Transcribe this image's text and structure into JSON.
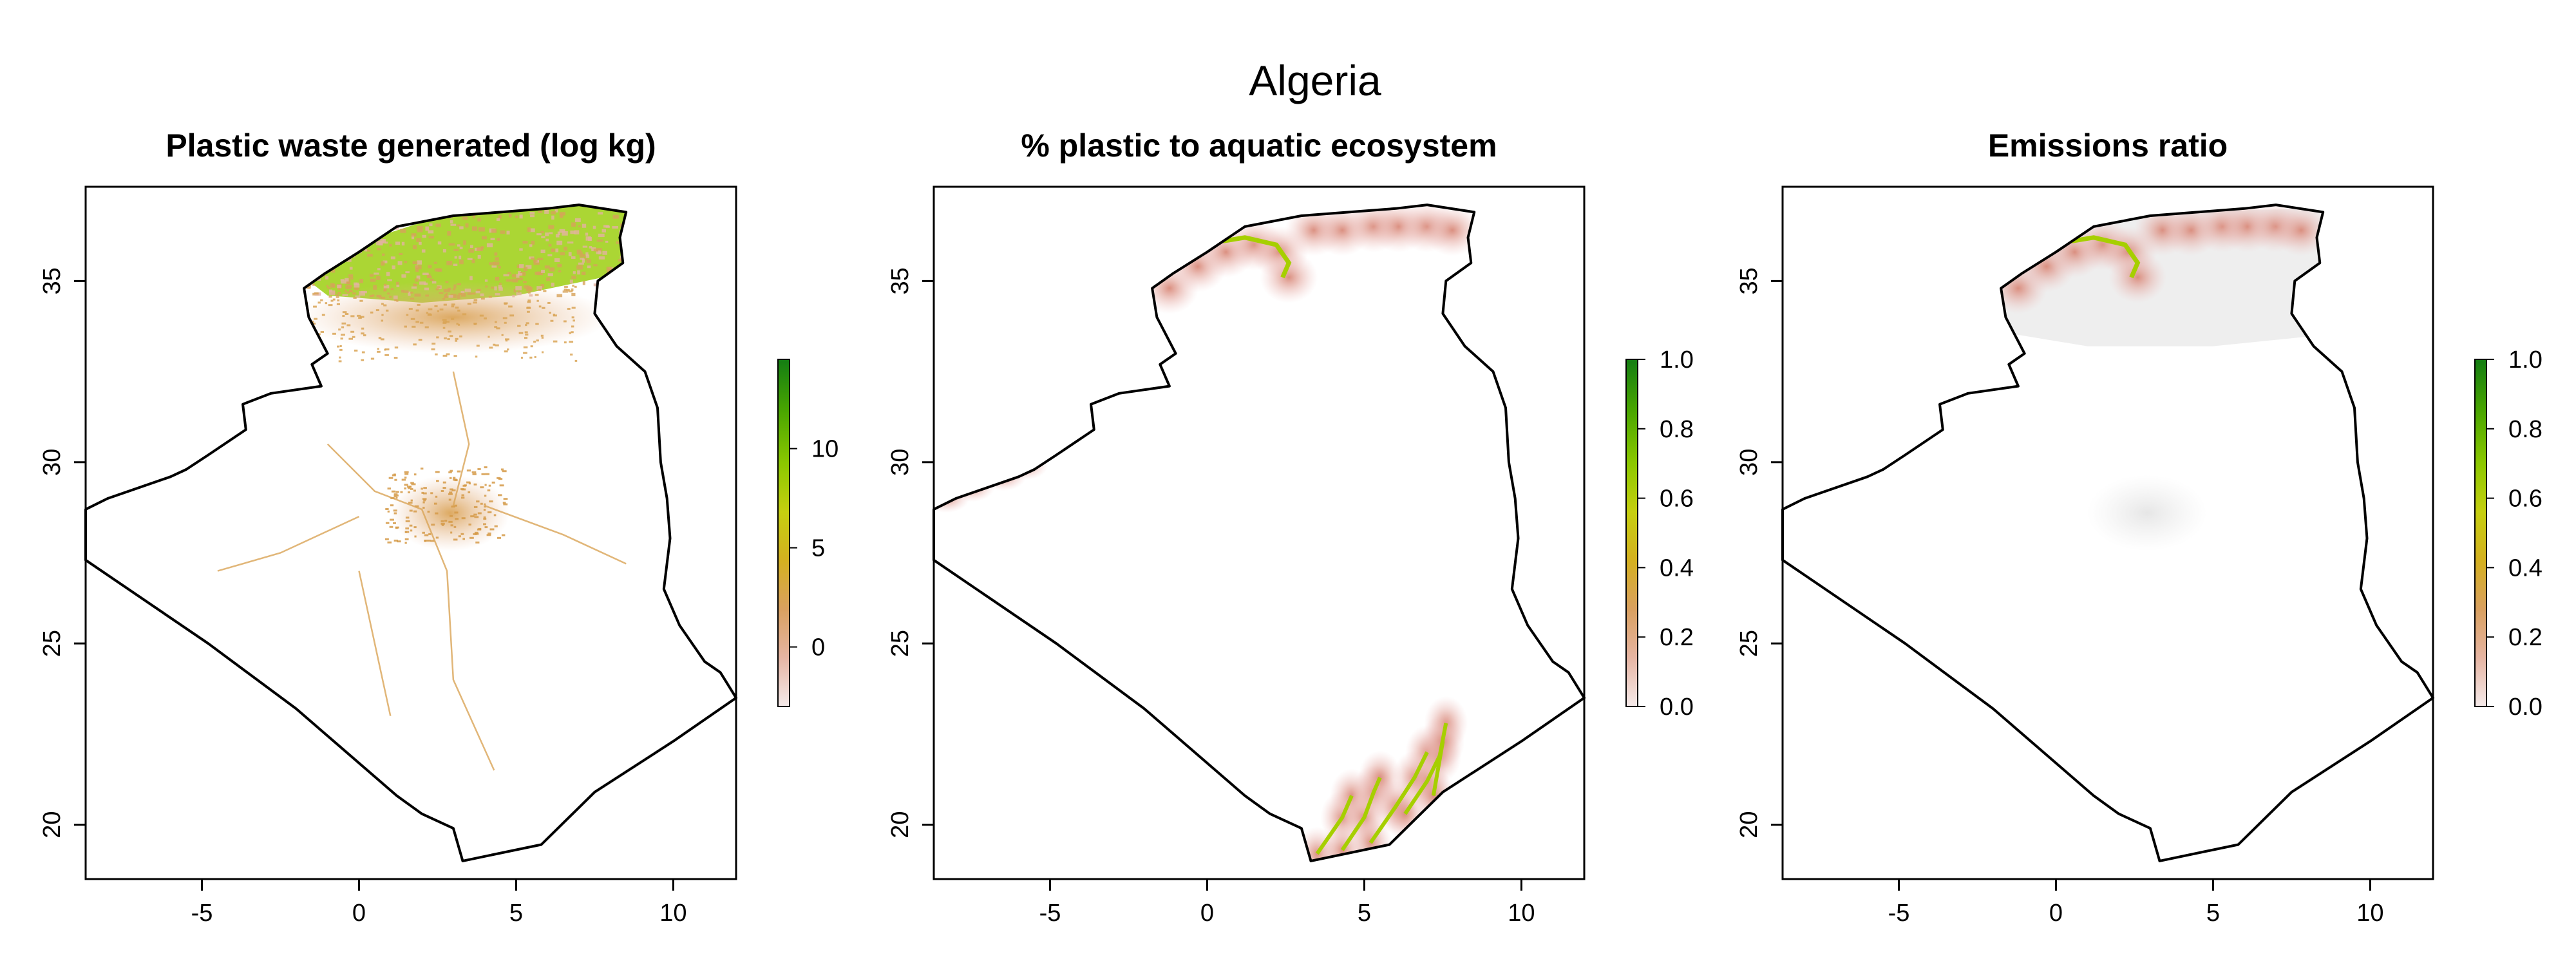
{
  "figure": {
    "title": "Algeria"
  },
  "colors": {
    "legend_ramp": [
      "#f5eaea",
      "#e6b5a3",
      "#d9a060",
      "#d4b020",
      "#c6cf10",
      "#8cc800",
      "#4aa600",
      "#137d13"
    ],
    "country_fill": "#ffffff",
    "background_gray": "#eeeeee",
    "border": "#000000"
  },
  "x_axis": {
    "range": [
      -8.7,
      12
    ],
    "ticks": [
      -5,
      0,
      5,
      10
    ],
    "labels": [
      "-5",
      "0",
      "5",
      "10"
    ]
  },
  "y_axis": {
    "range": [
      18.5,
      37.6
    ],
    "ticks": [
      20,
      25,
      30,
      35
    ],
    "labels": [
      "20",
      "25",
      "30",
      "35"
    ]
  },
  "border_lonlat": [
    [
      -8.7,
      28.7
    ],
    [
      -8.0,
      29.0
    ],
    [
      -6.0,
      29.6
    ],
    [
      -5.5,
      29.8
    ],
    [
      -4.8,
      30.2
    ],
    [
      -3.6,
      30.9
    ],
    [
      -3.7,
      31.6
    ],
    [
      -2.8,
      31.9
    ],
    [
      -1.2,
      32.1
    ],
    [
      -1.5,
      32.7
    ],
    [
      -1.0,
      33.0
    ],
    [
      -1.6,
      34.0
    ],
    [
      -1.75,
      34.8
    ],
    [
      -1.1,
      35.2
    ],
    [
      0.0,
      35.8
    ],
    [
      1.2,
      36.5
    ],
    [
      3.0,
      36.8
    ],
    [
      4.5,
      36.9
    ],
    [
      6.0,
      37.0
    ],
    [
      7.0,
      37.1
    ],
    [
      8.5,
      36.9
    ],
    [
      8.3,
      36.2
    ],
    [
      8.4,
      35.5
    ],
    [
      7.6,
      35.0
    ],
    [
      7.5,
      34.1
    ],
    [
      8.2,
      33.2
    ],
    [
      9.1,
      32.5
    ],
    [
      9.5,
      31.5
    ],
    [
      9.6,
      30.0
    ],
    [
      9.8,
      29.0
    ],
    [
      9.9,
      27.9
    ],
    [
      9.7,
      26.5
    ],
    [
      10.2,
      25.5
    ],
    [
      11.0,
      24.5
    ],
    [
      11.5,
      24.2
    ],
    [
      12.0,
      23.5
    ],
    [
      10.0,
      22.3
    ],
    [
      7.5,
      20.9
    ],
    [
      5.8,
      19.45
    ],
    [
      3.3,
      19.0
    ],
    [
      3.0,
      19.9
    ],
    [
      2.0,
      20.3
    ],
    [
      1.2,
      20.8
    ],
    [
      -2.0,
      23.2
    ],
    [
      -4.8,
      25.0
    ],
    [
      -8.7,
      27.3
    ]
  ],
  "panels": [
    {
      "title": "Plastic waste generated (log kg)",
      "legend": {
        "min": -3,
        "max": 14.5,
        "ticks": [
          0,
          5,
          10
        ],
        "labels": [
          "0",
          "5",
          "10"
        ]
      }
    },
    {
      "title": "% plastic to aquatic ecosystem",
      "legend": {
        "min": 0,
        "max": 1,
        "ticks": [
          0,
          0.2,
          0.4,
          0.6,
          0.8,
          1.0
        ],
        "labels": [
          "0.0",
          "0.2",
          "0.4",
          "0.6",
          "0.8",
          "1.0"
        ]
      }
    },
    {
      "title": "Emissions ratio",
      "legend": {
        "min": 0,
        "max": 1,
        "ticks": [
          0,
          0.2,
          0.4,
          0.6,
          0.8,
          1.0
        ],
        "labels": [
          "0.0",
          "0.2",
          "0.4",
          "0.6",
          "0.8",
          "1.0"
        ]
      }
    }
  ]
}
